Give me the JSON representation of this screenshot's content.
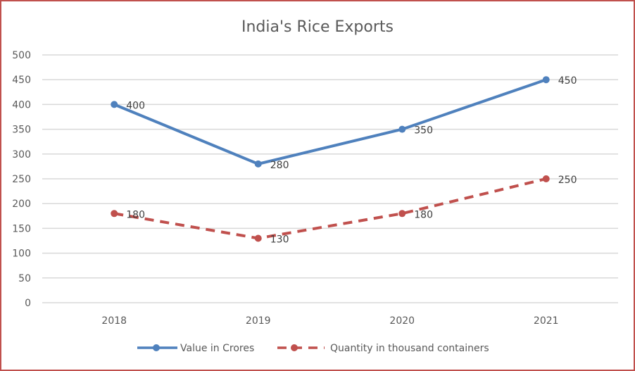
{
  "chart_data": {
    "type": "line",
    "title": "India's Rice Exports",
    "xlabel": "",
    "ylabel": "",
    "categories": [
      "2018",
      "2019",
      "2020",
      "2021"
    ],
    "ylim": [
      0,
      500
    ],
    "yticks": [
      "0",
      "50",
      "100",
      "150",
      "200",
      "250",
      "300",
      "350",
      "400",
      "450",
      "500"
    ],
    "grid": true,
    "legend_position": "bottom",
    "series": [
      {
        "name": "Value in Crores",
        "values": [
          400,
          280,
          350,
          450
        ],
        "labels": [
          "400",
          "280",
          "350",
          "450"
        ],
        "color": "#4f81bd",
        "style": "solid"
      },
      {
        "name": "Quantity in thousand containers",
        "values": [
          180,
          130,
          180,
          250
        ],
        "labels": [
          "180",
          "130",
          "180",
          "250"
        ],
        "color": "#c0504d",
        "style": "dashed"
      }
    ]
  },
  "colors": {
    "border": "#c0504d",
    "grid": "#d9d9d9"
  }
}
